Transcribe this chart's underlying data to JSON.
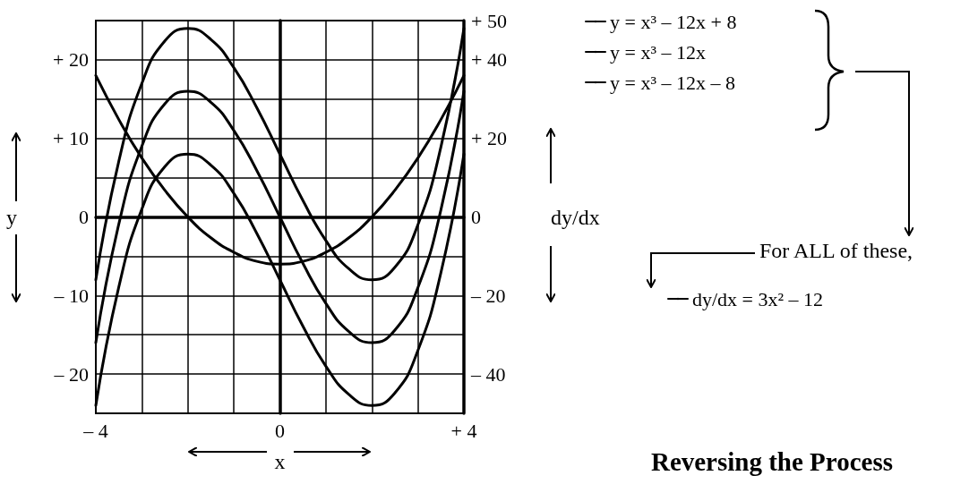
{
  "chart_data": {
    "type": "line",
    "title": "Reversing the Process",
    "xlabel": "x",
    "ylabel": "y",
    "y2label": "dy/dx",
    "x": [
      -4,
      -3.5,
      -3,
      -2.5,
      -2,
      -1.5,
      -1,
      -0.5,
      0,
      0.5,
      1,
      1.5,
      2,
      2.5,
      3,
      3.5,
      4
    ],
    "series": [
      {
        "name": "y = x³ – 12x + 8",
        "color": "#000000",
        "values": [
          -8,
          7.1,
          17,
          22.4,
          24,
          22.6,
          19,
          13.9,
          8,
          2.1,
          -3,
          -6.6,
          -8,
          -6.4,
          -1,
          8.9,
          24
        ]
      },
      {
        "name": "y = x³ – 12x",
        "color": "#000000",
        "values": [
          -16,
          -0.9,
          9,
          14.4,
          16,
          14.6,
          11,
          5.9,
          0,
          -5.9,
          -11,
          -14.6,
          -16,
          -14.4,
          -9,
          0.9,
          16
        ]
      },
      {
        "name": "y = x³ – 12x – 8",
        "color": "#000000",
        "values": [
          -24,
          -8.9,
          1,
          6.4,
          8,
          6.6,
          3,
          -2.1,
          -8,
          -13.9,
          -19,
          -22.6,
          -24,
          -22.4,
          -17,
          -7.1,
          8
        ]
      },
      {
        "name": "dy/dx = 3x² – 12",
        "color": "#000000",
        "axis": "y2",
        "values": [
          36,
          24.8,
          15,
          6.8,
          0,
          -5.3,
          -9,
          -11.3,
          -12,
          -11.3,
          -9,
          -5.3,
          0,
          6.8,
          15,
          24.8,
          36
        ]
      }
    ],
    "xlim": [
      -4,
      4
    ],
    "xticks": [
      {
        "value": -4,
        "label": "– 4"
      },
      {
        "value": -3,
        "label": null
      },
      {
        "value": -2,
        "label": null
      },
      {
        "value": -1,
        "label": null
      },
      {
        "value": 0,
        "label": "0"
      },
      {
        "value": 1,
        "label": null
      },
      {
        "value": 2,
        "label": null
      },
      {
        "value": 3,
        "label": null
      },
      {
        "value": 4,
        "label": "+ 4"
      }
    ],
    "ylim": [
      -25,
      25
    ],
    "yticks": [
      {
        "value": -25,
        "label": null
      },
      {
        "value": -20,
        "label": "– 20"
      },
      {
        "value": -15,
        "label": null
      },
      {
        "value": -10,
        "label": "– 10"
      },
      {
        "value": -5,
        "label": null
      },
      0,
      {
        "value": 5,
        "label": null
      },
      {
        "value": 10,
        "label": "+ 10"
      },
      {
        "value": 15,
        "label": null
      },
      {
        "value": 20,
        "label": "+ 20"
      },
      {
        "value": 25,
        "label": null
      }
    ],
    "y2lim": [
      -50,
      50
    ],
    "y2ticks": [
      {
        "value": -40,
        "label": "– 40"
      },
      {
        "value": -20,
        "label": "– 20"
      },
      0,
      {
        "value": 20,
        "label": "+ 20"
      },
      {
        "value": 40,
        "label": "+ 40"
      },
      {
        "value": 50,
        "label": "+ 50"
      }
    ],
    "annotations": [
      "For ALL of these,"
    ],
    "grid": true,
    "legend": "right",
    "marker": "none",
    "line_style": "solid"
  }
}
